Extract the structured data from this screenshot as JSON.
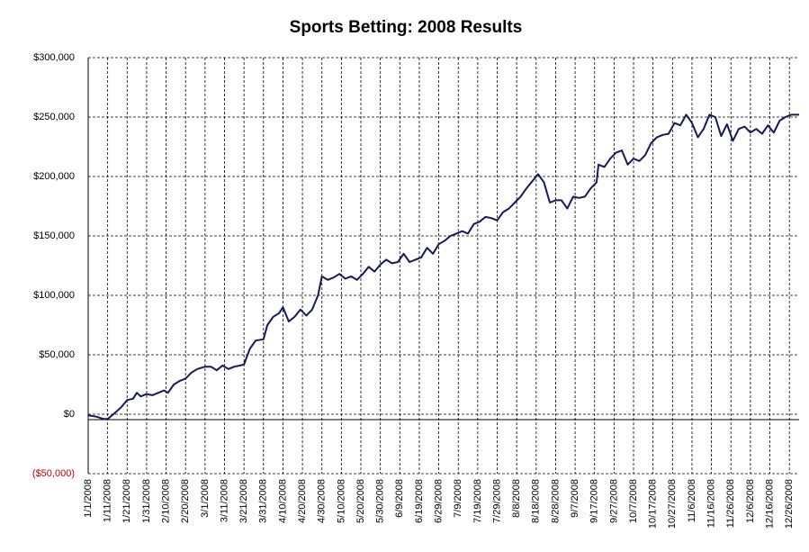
{
  "chart_data": {
    "type": "line",
    "title": "Sports Betting: 2008 Results",
    "x": [
      "1/1/2008",
      "1/5/2008",
      "1/9/2008",
      "1/11/2008",
      "1/14/2008",
      "1/18/2008",
      "1/21/2008",
      "1/24/2008",
      "1/26/2008",
      "1/28/2008",
      "1/31/2008",
      "2/3/2008",
      "2/6/2008",
      "2/9/2008",
      "2/11/2008",
      "2/14/2008",
      "2/17/2008",
      "2/20/2008",
      "2/23/2008",
      "2/26/2008",
      "3/1/2008",
      "3/4/2008",
      "3/7/2008",
      "3/10/2008",
      "3/13/2008",
      "3/16/2008",
      "3/19/2008",
      "3/21/2008",
      "3/24/2008",
      "3/27/2008",
      "3/31/2008",
      "4/2/2008",
      "4/5/2008",
      "4/8/2008",
      "4/10/2008",
      "4/13/2008",
      "4/16/2008",
      "4/19/2008",
      "4/22/2008",
      "4/25/2008",
      "4/28/2008",
      "4/30/2008",
      "5/3/2008",
      "5/6/2008",
      "5/9/2008",
      "5/12/2008",
      "5/15/2008",
      "5/18/2008",
      "5/21/2008",
      "5/24/2008",
      "5/27/2008",
      "5/30/2008",
      "6/2/2008",
      "6/5/2008",
      "6/8/2008",
      "6/11/2008",
      "6/14/2008",
      "6/17/2008",
      "6/20/2008",
      "6/23/2008",
      "6/26/2008",
      "6/29/2008",
      "7/2/2008",
      "7/5/2008",
      "7/8/2008",
      "7/11/2008",
      "7/14/2008",
      "7/17/2008",
      "7/20/2008",
      "7/23/2008",
      "7/26/2008",
      "7/29/2008",
      "8/1/2008",
      "8/4/2008",
      "8/7/2008",
      "8/10/2008",
      "8/13/2008",
      "8/16/2008",
      "8/19/2008",
      "8/22/2008",
      "8/25/2008",
      "8/28/2008",
      "8/31/2008",
      "9/3/2008",
      "9/6/2008",
      "9/9/2008",
      "9/12/2008",
      "9/15/2008",
      "9/18/2008",
      "9/19/2008",
      "9/22/2008",
      "9/25/2008",
      "9/28/2008",
      "10/1/2008",
      "10/4/2008",
      "10/7/2008",
      "10/10/2008",
      "10/13/2008",
      "10/16/2008",
      "10/19/2008",
      "10/22/2008",
      "10/25/2008",
      "10/28/2008",
      "10/31/2008",
      "11/3/2008",
      "11/6/2008",
      "11/9/2008",
      "11/12/2008",
      "11/15/2008",
      "11/18/2008",
      "11/21/2008",
      "11/24/2008",
      "11/27/2008",
      "11/30/2008",
      "12/3/2008",
      "12/6/2008",
      "12/9/2008",
      "12/12/2008",
      "12/15/2008",
      "12/18/2008",
      "12/21/2008",
      "12/24/2008",
      "12/27/2008",
      "12/31/2008"
    ],
    "values": [
      -1000,
      -2000,
      -4000,
      -4000,
      0,
      6000,
      12000,
      13000,
      18000,
      15000,
      17000,
      16000,
      18000,
      20000,
      18000,
      25000,
      28000,
      30000,
      35000,
      38000,
      40000,
      40000,
      37000,
      41000,
      38000,
      40000,
      41000,
      42000,
      55000,
      62000,
      63000,
      75000,
      82000,
      85000,
      90000,
      78000,
      82000,
      88000,
      83000,
      88000,
      100000,
      116000,
      113000,
      115000,
      118000,
      114000,
      116000,
      113000,
      118000,
      124000,
      120000,
      126000,
      130000,
      127000,
      128000,
      135000,
      128000,
      130000,
      132000,
      140000,
      135000,
      143000,
      146000,
      150000,
      152000,
      154000,
      152000,
      160000,
      162000,
      166000,
      165000,
      163000,
      170000,
      173000,
      178000,
      183000,
      190000,
      196000,
      202000,
      195000,
      178000,
      180000,
      180000,
      173000,
      183000,
      182000,
      183000,
      190000,
      195000,
      210000,
      208000,
      215000,
      220000,
      222000,
      210000,
      215000,
      213000,
      218000,
      228000,
      233000,
      235000,
      236000,
      245000,
      243000,
      252000,
      245000,
      233000,
      240000,
      252000,
      250000,
      234000,
      244000,
      230000,
      240000,
      242000,
      237000,
      240000,
      236000,
      243000,
      237000,
      247000,
      250000,
      252000,
      252000
    ],
    "color": "#141a5a",
    "xlim": [
      "1/1/2008",
      "12/31/2008"
    ],
    "xticks": [
      "1/1/2008",
      "1/11/2008",
      "1/21/2008",
      "1/31/2008",
      "2/10/2008",
      "2/20/2008",
      "3/1/2008",
      "3/11/2008",
      "3/21/2008",
      "3/31/2008",
      "4/10/2008",
      "4/20/2008",
      "4/30/2008",
      "5/10/2008",
      "5/20/2008",
      "5/30/2008",
      "6/9/2008",
      "6/19/2008",
      "6/29/2008",
      "7/9/2008",
      "7/19/2008",
      "7/29/2008",
      "8/8/2008",
      "8/18/2008",
      "8/28/2008",
      "9/7/2008",
      "9/17/2008",
      "9/27/2008",
      "10/7/2008",
      "10/17/2008",
      "10/27/2008",
      "11/6/2008",
      "11/16/2008",
      "11/26/2008",
      "12/6/2008",
      "12/16/2008",
      "12/26/2008"
    ],
    "ylim": [
      -50000,
      300000
    ],
    "yticks": [
      {
        "value": -50000,
        "label": "($50,000)"
      },
      {
        "value": 0,
        "label": "$0"
      },
      {
        "value": 50000,
        "label": "$50,000"
      },
      {
        "value": 100000,
        "label": "$100,000"
      },
      {
        "value": 150000,
        "label": "$150,000"
      },
      {
        "value": 200000,
        "label": "$200,000"
      },
      {
        "value": 250000,
        "label": "$250,000"
      },
      {
        "value": 300000,
        "label": "$300,000"
      }
    ],
    "negative_tick_color": "#c00000",
    "grid": true
  }
}
